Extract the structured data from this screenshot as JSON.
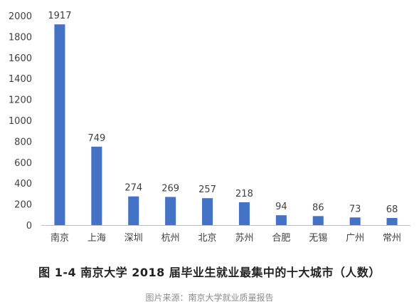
{
  "figure_caption": "图 1-4   南京大学 2018 届毕业生就业最集中的十大城市（人数）",
  "source_note": "图片来源：南京大学就业质量报告",
  "colors": {
    "bar": "#4472c4",
    "axis": "#bfbfbf",
    "text": "#404040"
  },
  "chart_data": {
    "type": "bar",
    "title": "",
    "xlabel": "",
    "ylabel": "",
    "categories": [
      "南京",
      "上海",
      "深圳",
      "杭州",
      "北京",
      "苏州",
      "合肥",
      "无锡",
      "广州",
      "常州"
    ],
    "values": [
      1917,
      749,
      274,
      269,
      257,
      218,
      94,
      86,
      73,
      68
    ],
    "ylim": [
      0,
      2000
    ],
    "yticks": [
      0,
      200,
      400,
      600,
      800,
      1000,
      1200,
      1400,
      1600,
      1800,
      2000
    ],
    "grid": false,
    "legend": "none"
  }
}
